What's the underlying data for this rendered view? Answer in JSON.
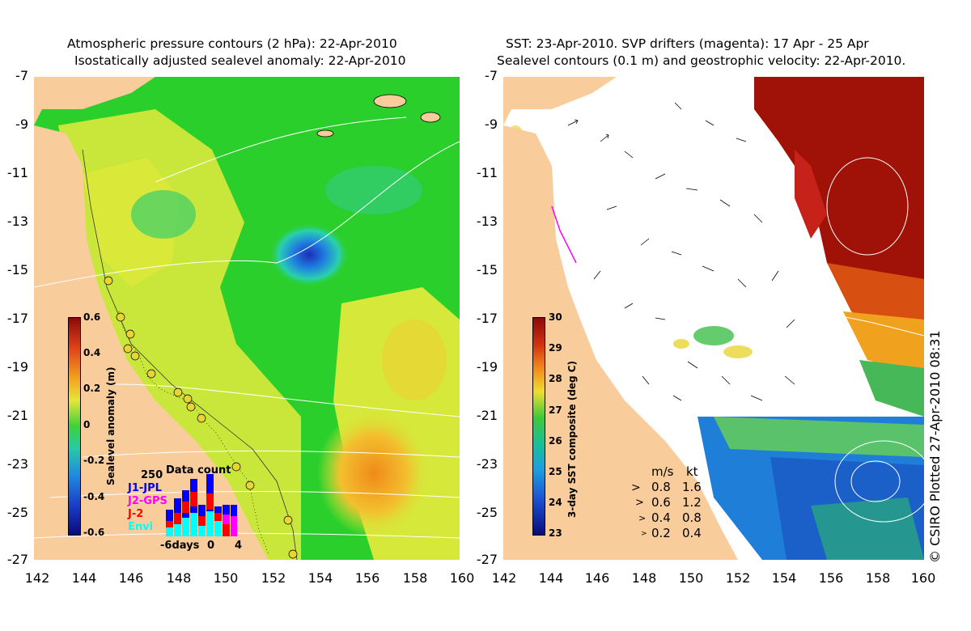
{
  "left_panel": {
    "title_line1": "Atmospheric pressure contours (2 hPa): 22-Apr-2010",
    "title_line2": "Isostatically adjusted sealevel anomaly: 22-Apr-2010",
    "colorbar_label": "Sealevel anomaly (m)",
    "colorbar_ticks": [
      "0.6",
      "0.4",
      "0.2",
      "0",
      "-0.2",
      "-0.4",
      "-0.6"
    ],
    "data_count": {
      "title": "Data count",
      "max_label": "250",
      "sources": [
        {
          "name": "J1-JPL",
          "color": "#0000ff"
        },
        {
          "name": "J2-GPS",
          "color": "#ff00ff"
        },
        {
          "name": "J-2",
          "color": "#ff0000"
        },
        {
          "name": "Envi",
          "color": "#00ffff"
        }
      ],
      "x_labels": [
        "-6days",
        "0",
        "4"
      ]
    }
  },
  "right_panel": {
    "title_line1": "SST: 23-Apr-2010. SVP drifters (magenta): 17 Apr - 25 Apr",
    "title_line2": "Sealevel contours (0.1 m) and geostrophic velocity: 22-Apr-2010.",
    "colorbar_label": "3-day SST composite (deg C)",
    "colorbar_ticks": [
      "30",
      "29",
      "28",
      "27",
      "26",
      "25",
      "24",
      "23"
    ],
    "speed_legend": {
      "headers": [
        "m/s",
        "kt"
      ],
      "rows": [
        {
          "ms": "0.8",
          "kt": "1.6"
        },
        {
          "ms": "0.6",
          "kt": "1.2"
        },
        {
          "ms": "0.4",
          "kt": "0.8"
        },
        {
          "ms": "0.2",
          "kt": "0.4"
        }
      ]
    }
  },
  "y_axis_labels": [
    "-7",
    "-9",
    "-11",
    "-13",
    "-15",
    "-17",
    "-19",
    "-21",
    "-23",
    "-25",
    "-27"
  ],
  "x_axis_labels": [
    "142",
    "144",
    "146",
    "148",
    "150",
    "152",
    "154",
    "156",
    "158",
    "160"
  ],
  "copyright": "© CSIRO Plotted 27-Apr-2010 08:31",
  "colors": {
    "land": "#f9cc9c",
    "sla_green": "#2bcf2b",
    "sla_yellow": "#d6e83a",
    "sla_blue": "#1a4fd8",
    "sst_red": "#a01208",
    "sst_blue": "#1f7fd8"
  }
}
